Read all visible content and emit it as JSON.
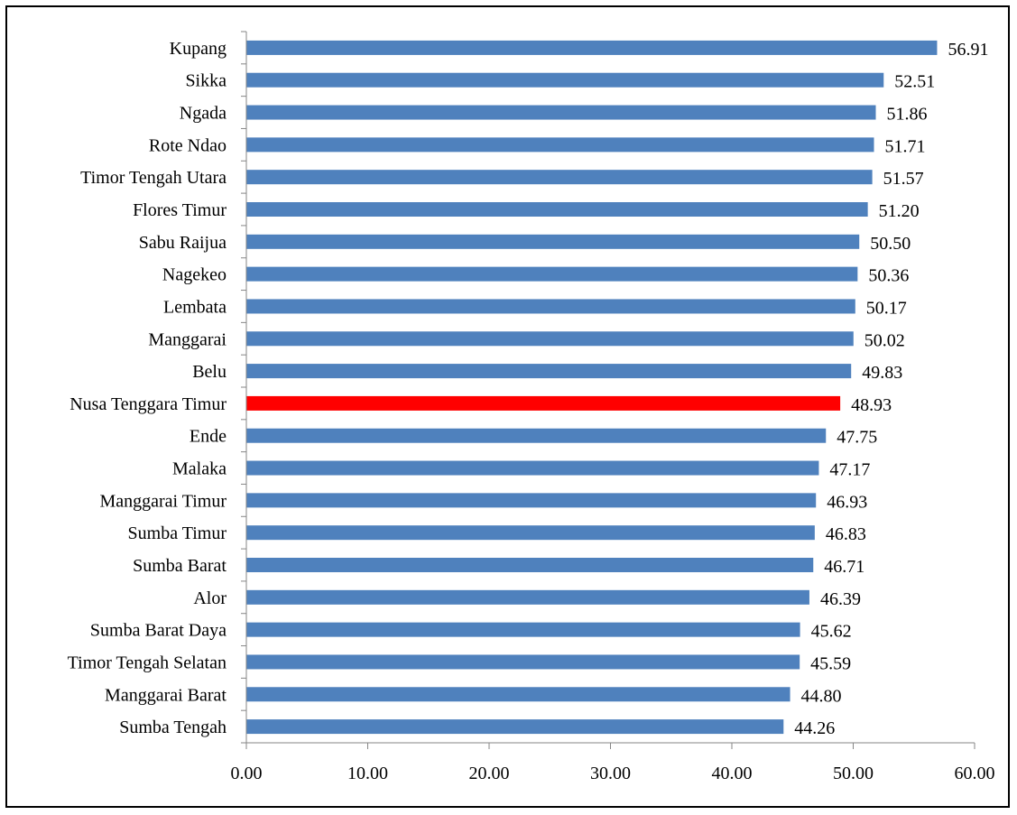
{
  "chart_data": {
    "type": "bar",
    "orientation": "horizontal",
    "categories": [
      "Kupang",
      "Sikka",
      "Ngada",
      "Rote Ndao",
      "Timor Tengah Utara",
      "Flores Timur",
      "Sabu Raijua",
      "Nagekeo",
      "Lembata",
      "Manggarai",
      "Belu",
      "Nusa Tenggara Timur",
      "Ende",
      "Malaka",
      "Manggarai Timur",
      "Sumba Timur",
      "Sumba Barat",
      "Alor",
      "Sumba Barat Daya",
      "Timor Tengah Selatan",
      "Manggarai Barat",
      "Sumba Tengah"
    ],
    "values": [
      56.91,
      52.51,
      51.86,
      51.71,
      51.57,
      51.2,
      50.5,
      50.36,
      50.17,
      50.02,
      49.83,
      48.93,
      47.75,
      47.17,
      46.93,
      46.83,
      46.71,
      46.39,
      45.62,
      45.59,
      44.8,
      44.26
    ],
    "value_labels": [
      "56.91",
      "52.51",
      "51.86",
      "51.71",
      "51.57",
      "51.20",
      "50.50",
      "50.36",
      "50.17",
      "50.02",
      "49.83",
      "48.93",
      "47.75",
      "47.17",
      "46.93",
      "46.83",
      "46.71",
      "46.39",
      "45.62",
      "45.59",
      "44.80",
      "44.26"
    ],
    "highlight_category": "Nusa Tenggara Timur",
    "xlim": [
      0,
      60
    ],
    "x_ticks": [
      0,
      10,
      20,
      30,
      40,
      50,
      60
    ],
    "x_tick_labels": [
      "0.00",
      "10.00",
      "20.00",
      "30.00",
      "40.00",
      "50.00",
      "60.00"
    ],
    "grid": false,
    "colors": {
      "bar": "#4f81bd",
      "highlight": "#ff0000",
      "axis": "#868686"
    }
  }
}
